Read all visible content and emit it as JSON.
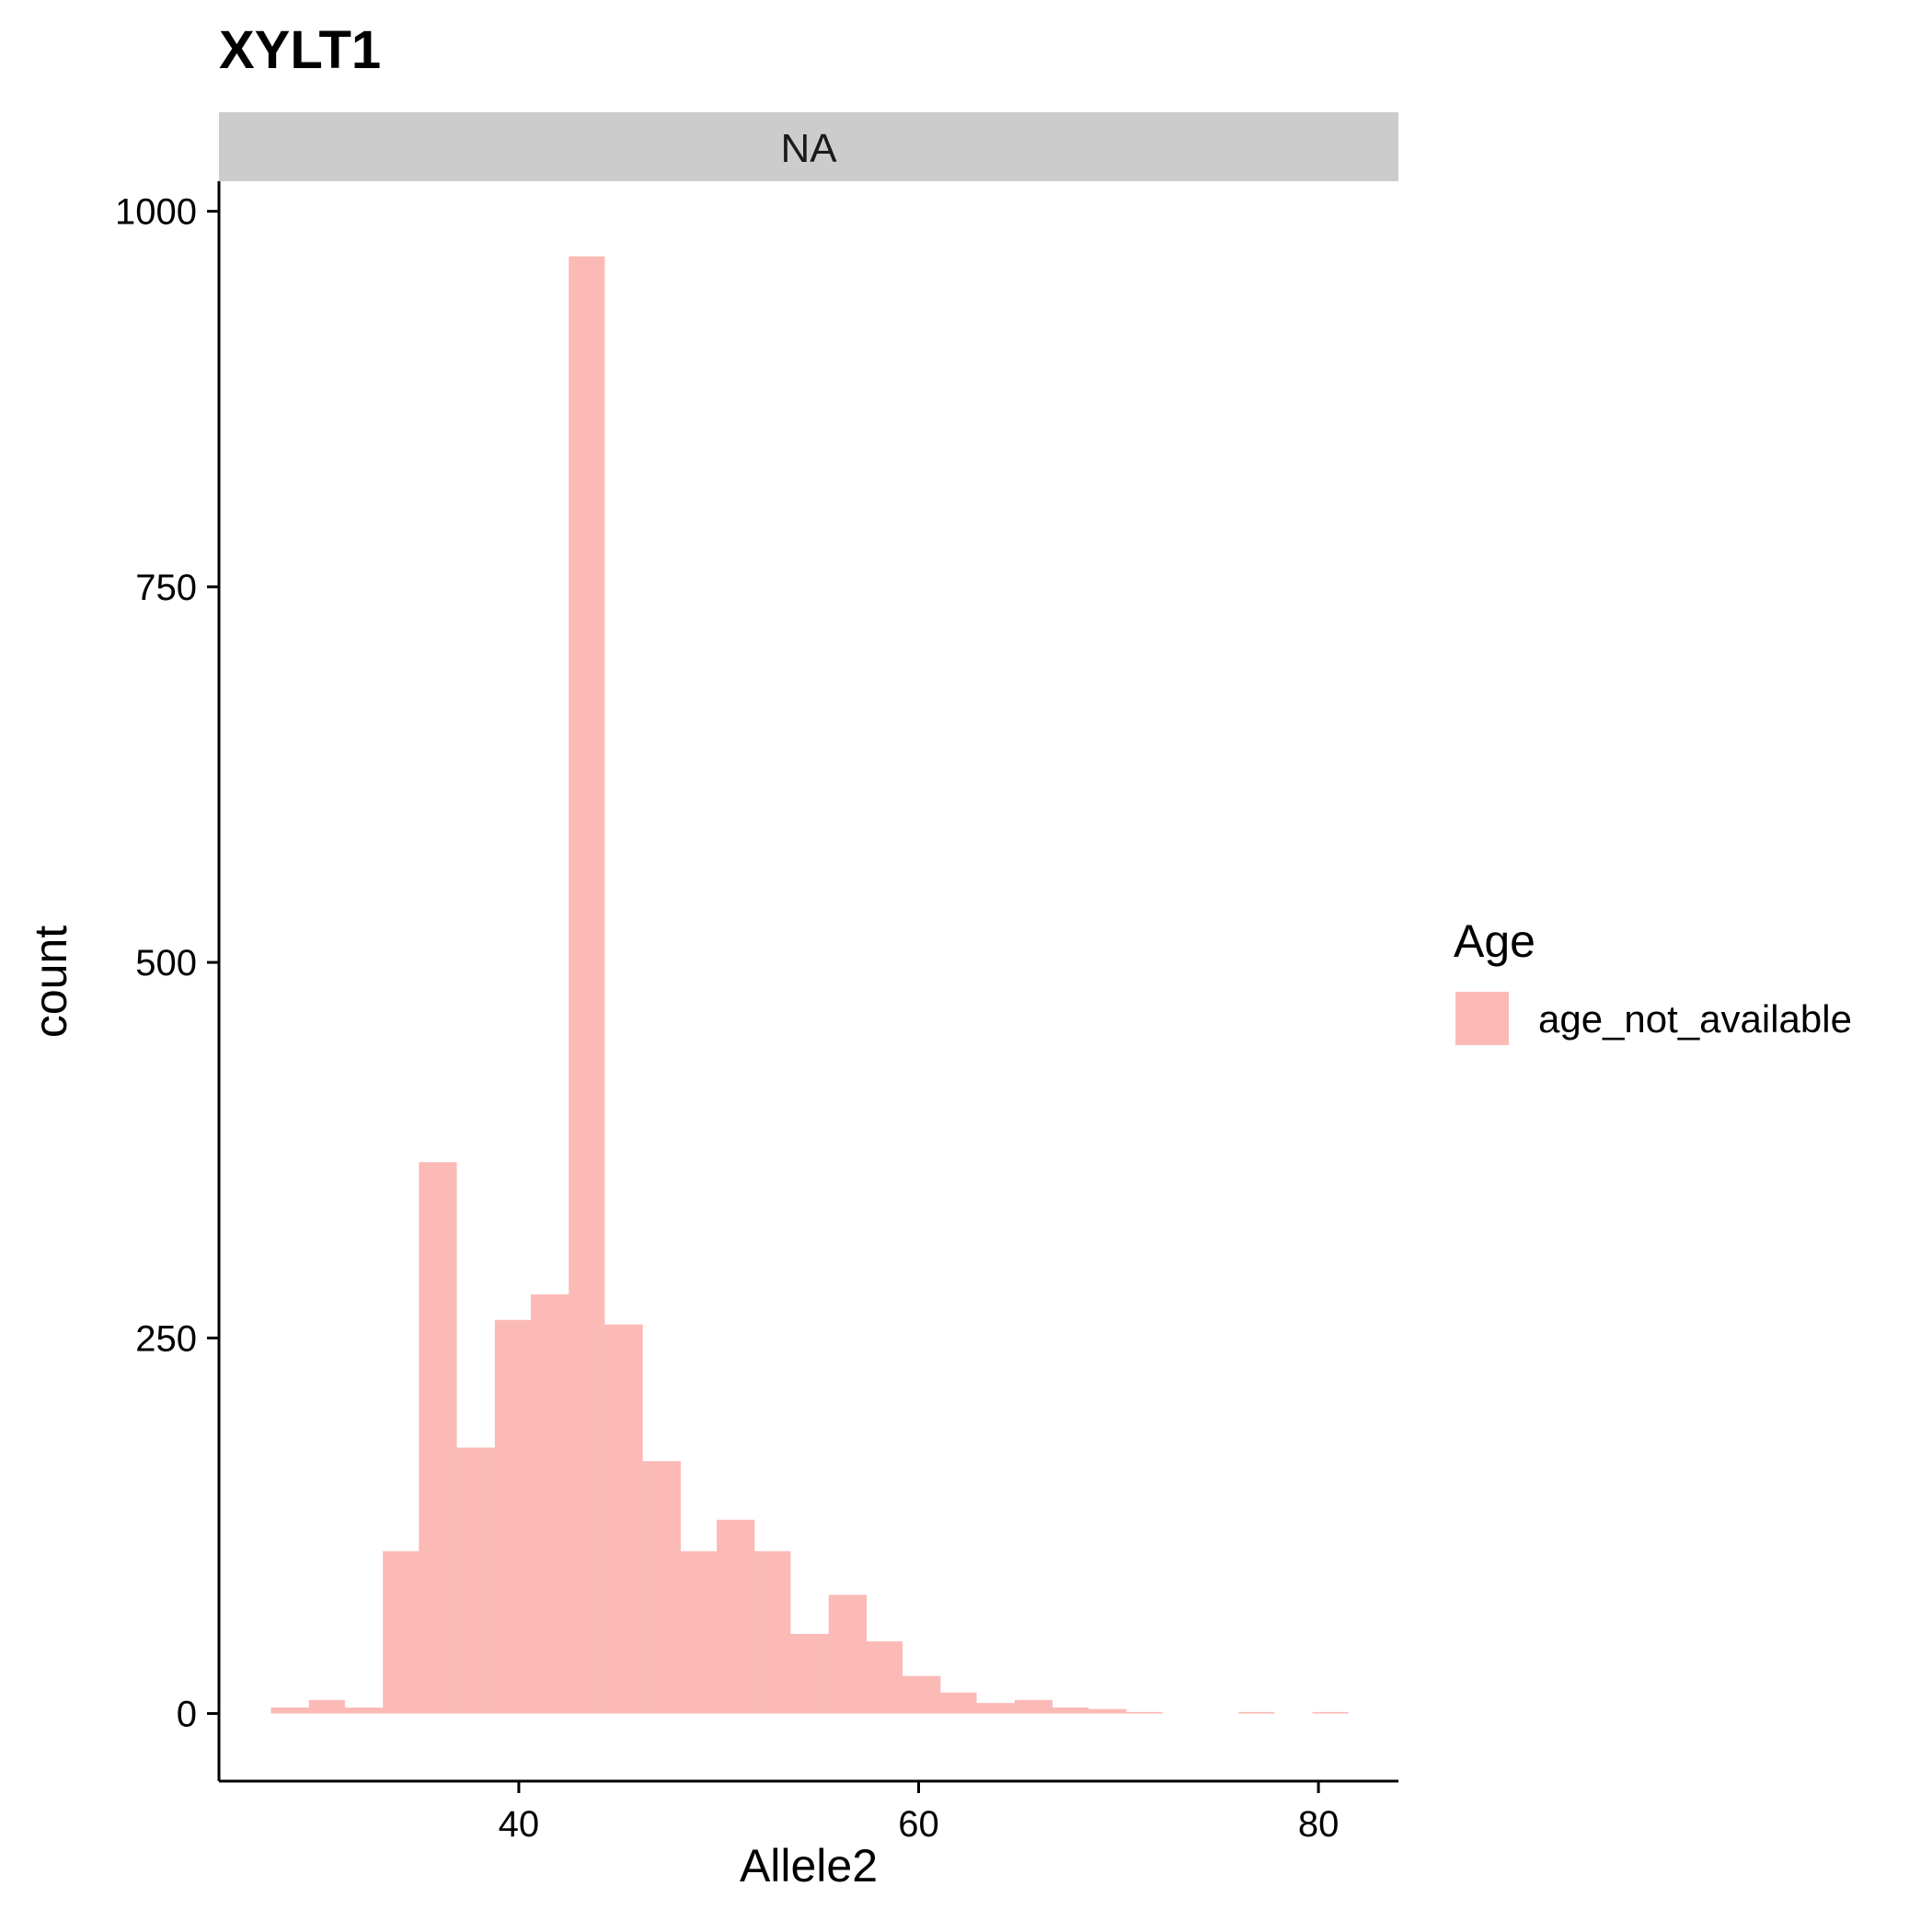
{
  "chart_data": {
    "type": "bar",
    "title": "XYLT1",
    "facet_label": "NA",
    "xlabel": "Allele2",
    "ylabel": "count",
    "xlim": [
      25,
      84
    ],
    "ylim": [
      -45,
      1020
    ],
    "x_ticks": [
      40,
      60,
      80
    ],
    "y_ticks": [
      0,
      250,
      500,
      750,
      1000
    ],
    "grid": false,
    "legend": {
      "title": "Age",
      "position": "right"
    },
    "color": "#F8766D",
    "bin_width": 1.86,
    "series": [
      {
        "name": "age_not_available",
        "color": "#F8766D",
        "bins": [
          {
            "x0": 27.6,
            "x1": 29.5,
            "count": 4
          },
          {
            "x0": 29.5,
            "x1": 31.3,
            "count": 9
          },
          {
            "x0": 31.3,
            "x1": 33.2,
            "count": 4
          },
          {
            "x0": 33.2,
            "x1": 35.0,
            "count": 108
          },
          {
            "x0": 35.0,
            "x1": 36.9,
            "count": 367
          },
          {
            "x0": 36.9,
            "x1": 38.8,
            "count": 177
          },
          {
            "x0": 38.8,
            "x1": 40.6,
            "count": 262
          },
          {
            "x0": 40.6,
            "x1": 42.5,
            "count": 279
          },
          {
            "x0": 42.5,
            "x1": 44.3,
            "count": 970
          },
          {
            "x0": 44.3,
            "x1": 46.2,
            "count": 259
          },
          {
            "x0": 46.2,
            "x1": 48.1,
            "count": 168
          },
          {
            "x0": 48.1,
            "x1": 49.9,
            "count": 108
          },
          {
            "x0": 49.9,
            "x1": 51.8,
            "count": 129
          },
          {
            "x0": 51.8,
            "x1": 53.6,
            "count": 108
          },
          {
            "x0": 53.6,
            "x1": 55.5,
            "count": 53
          },
          {
            "x0": 55.5,
            "x1": 57.4,
            "count": 79
          },
          {
            "x0": 57.4,
            "x1": 59.2,
            "count": 48
          },
          {
            "x0": 59.2,
            "x1": 61.1,
            "count": 25
          },
          {
            "x0": 61.1,
            "x1": 62.9,
            "count": 14
          },
          {
            "x0": 62.9,
            "x1": 64.8,
            "count": 7
          },
          {
            "x0": 64.8,
            "x1": 66.7,
            "count": 9
          },
          {
            "x0": 66.7,
            "x1": 68.5,
            "count": 4
          },
          {
            "x0": 68.5,
            "x1": 70.4,
            "count": 3
          },
          {
            "x0": 70.4,
            "x1": 72.2,
            "count": 1
          },
          {
            "x0": 72.2,
            "x1": 74.1,
            "count": 0
          },
          {
            "x0": 74.1,
            "x1": 76.0,
            "count": 0
          },
          {
            "x0": 76.0,
            "x1": 77.8,
            "count": 1
          },
          {
            "x0": 77.8,
            "x1": 79.7,
            "count": 0
          },
          {
            "x0": 79.7,
            "x1": 81.5,
            "count": 1
          }
        ]
      }
    ]
  }
}
